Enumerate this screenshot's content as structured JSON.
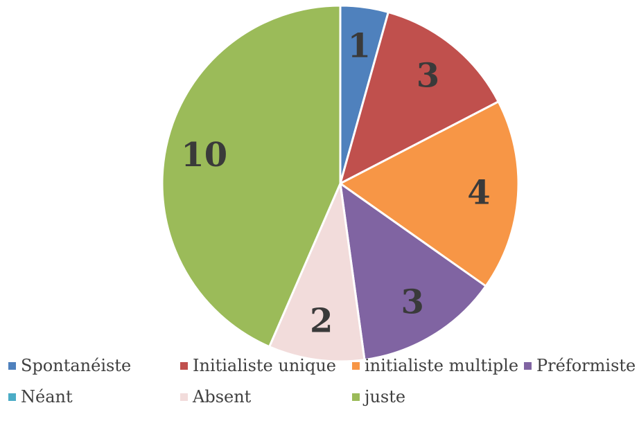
{
  "chart_data": {
    "type": "pie",
    "categories": [
      "Spontanéiste",
      "Initialiste unique",
      "initialiste multiple",
      "Préformiste",
      "Néant",
      "Absent",
      "juste"
    ],
    "values": [
      1,
      3,
      4,
      3,
      0,
      2,
      10
    ],
    "data_labels": [
      "1",
      "3",
      "4",
      "3",
      "",
      "2",
      "10"
    ],
    "colors": [
      "#4F81BD",
      "#C0504D",
      "#F79646",
      "#8064A2",
      "#4BACC6",
      "#F2DCDB",
      "#9BBB59"
    ],
    "legend_position": "bottom",
    "start_angle": "12 o'clock",
    "direction": "clockwise"
  }
}
